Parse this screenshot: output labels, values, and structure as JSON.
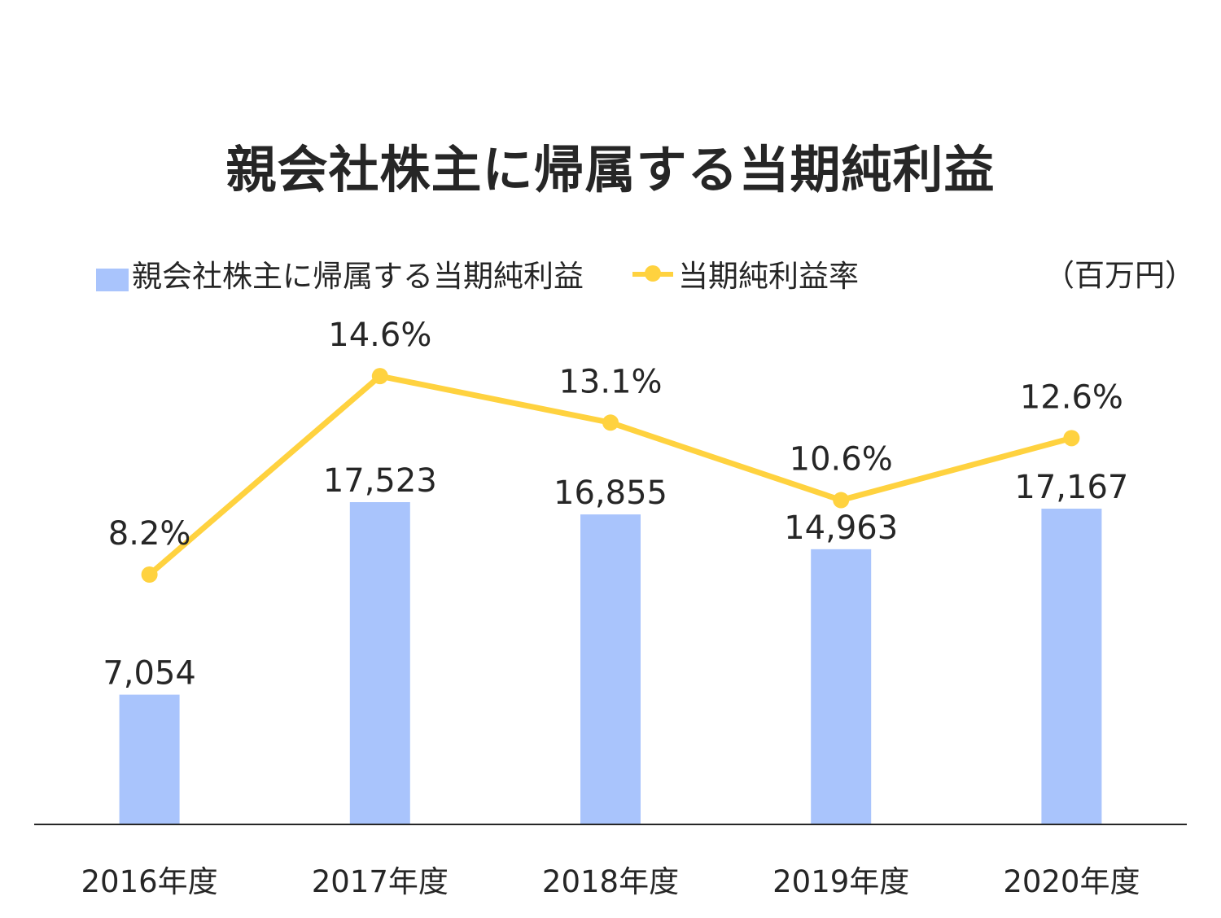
{
  "chart_data": {
    "type": "bar",
    "title": "親会社株主に帰属する当期純利益",
    "unit": "（百万円）",
    "categories": [
      "2016年度",
      "2017年度",
      "2018年度",
      "2019年度",
      "2020年度"
    ],
    "series": [
      {
        "name": "親会社株主に帰属する当期純利益",
        "type": "bar",
        "values": [
          7054,
          17523,
          16855,
          14963,
          17167
        ],
        "labels": [
          "7,054",
          "17,523",
          "16,855",
          "14,963",
          "17,167"
        ],
        "color": "#a9c4fc"
      },
      {
        "name": "当期純利益率",
        "type": "line",
        "values": [
          8.2,
          14.6,
          13.1,
          10.6,
          12.6
        ],
        "labels": [
          "8.2%",
          "14.6%",
          "13.1%",
          "10.6%",
          "12.6%"
        ],
        "color": "#ffd23f"
      }
    ],
    "legend_position": "top",
    "grid": false
  }
}
